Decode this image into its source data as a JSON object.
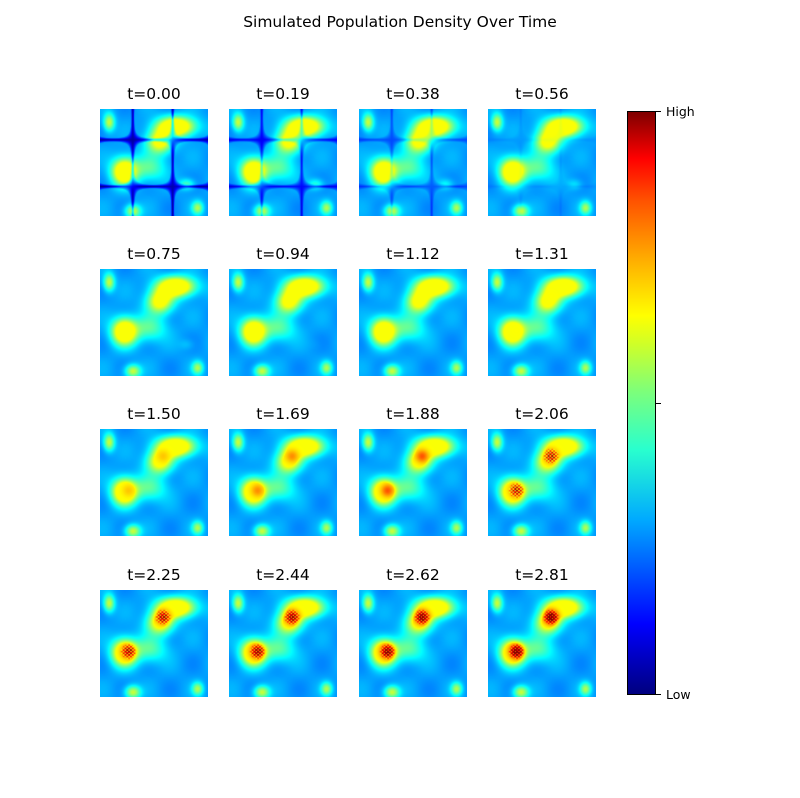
{
  "chart_data": {
    "type": "heatmap",
    "title": "Simulated Population Density Over Time",
    "layout": "4x4 grid of density maps",
    "colormap": "jet",
    "axes_visible": false,
    "panels": [
      {
        "label": "t=0.00",
        "t": 0.0
      },
      {
        "label": "t=0.19",
        "t": 0.19
      },
      {
        "label": "t=0.38",
        "t": 0.38
      },
      {
        "label": "t=0.56",
        "t": 0.56
      },
      {
        "label": "t=0.75",
        "t": 0.75
      },
      {
        "label": "t=0.94",
        "t": 0.94
      },
      {
        "label": "t=1.12",
        "t": 1.12
      },
      {
        "label": "t=1.31",
        "t": 1.31
      },
      {
        "label": "t=1.50",
        "t": 1.5
      },
      {
        "label": "t=1.69",
        "t": 1.69
      },
      {
        "label": "t=1.88",
        "t": 1.88
      },
      {
        "label": "t=2.06",
        "t": 2.06
      },
      {
        "label": "t=2.25",
        "t": 2.25
      },
      {
        "label": "t=2.44",
        "t": 2.44
      },
      {
        "label": "t=2.62",
        "t": 2.62
      },
      {
        "label": "t=2.81",
        "t": 2.81
      }
    ],
    "colorbar": {
      "orientation": "vertical",
      "position": "right",
      "tick_labels": [
        "High",
        "",
        "Low"
      ]
    }
  }
}
